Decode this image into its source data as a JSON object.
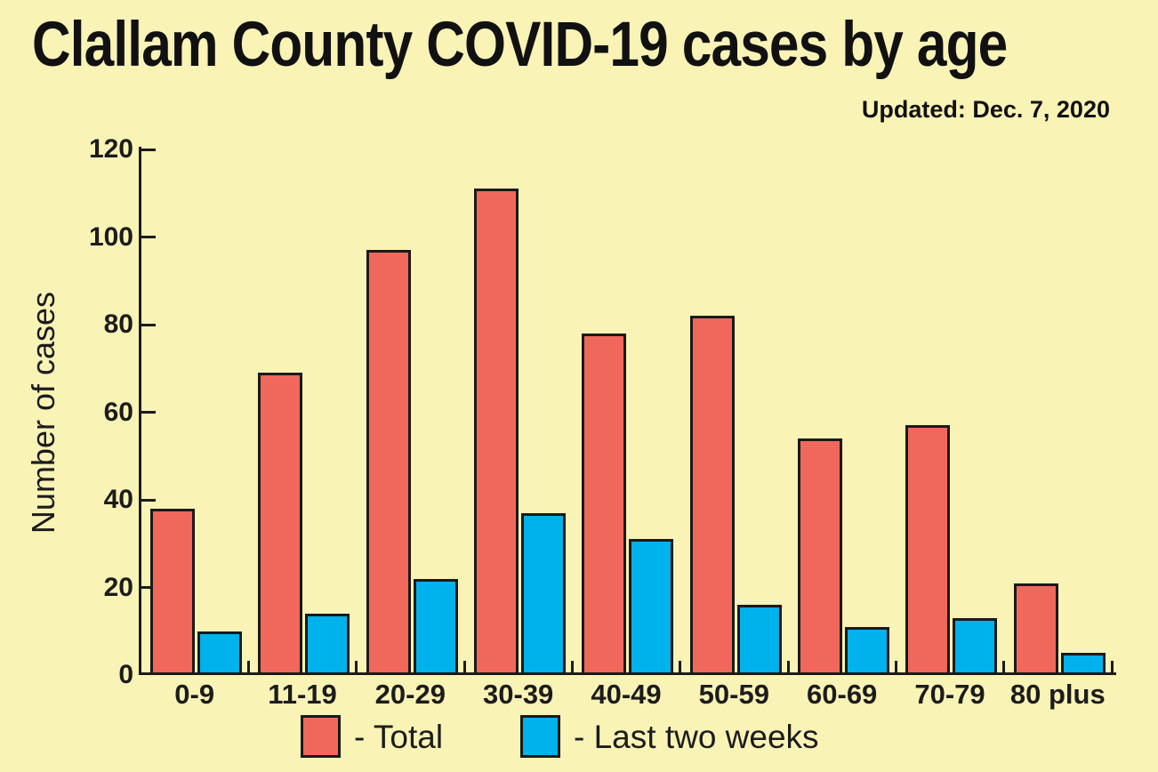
{
  "header": {
    "title": "Clallam County COVID-19 cases by age",
    "updated": "Updated: Dec. 7, 2020"
  },
  "chart_data": {
    "type": "bar",
    "title": "Clallam County COVID-19 cases by age",
    "subtitle": "Updated: Dec. 7, 2020",
    "ylabel": "Number of cases",
    "xlabel": "",
    "ylim": [
      0,
      120
    ],
    "yticks": [
      0,
      20,
      40,
      60,
      80,
      100,
      120
    ],
    "grid": false,
    "legend_position": "bottom",
    "categories": [
      "0-9",
      "11-19",
      "20-29",
      "30-39",
      "40-49",
      "50-59",
      "60-69",
      "70-79",
      "80 plus"
    ],
    "series": [
      {
        "name": "Total",
        "color": "#F0685C",
        "values": [
          38,
          69,
          97,
          111,
          78,
          82,
          54,
          57,
          21
        ]
      },
      {
        "name": "Last two weeks",
        "color": "#00B2EB",
        "values": [
          10,
          14,
          22,
          37,
          31,
          16,
          11,
          13,
          5
        ]
      }
    ]
  },
  "legend": {
    "total_label": "- Total",
    "recent_label": "- Last two weeks"
  },
  "colors": {
    "background": "#F9F3B6",
    "total_bar": "#F0685C",
    "recent_bar": "#00B2EB",
    "ink": "#1C1C1C"
  }
}
